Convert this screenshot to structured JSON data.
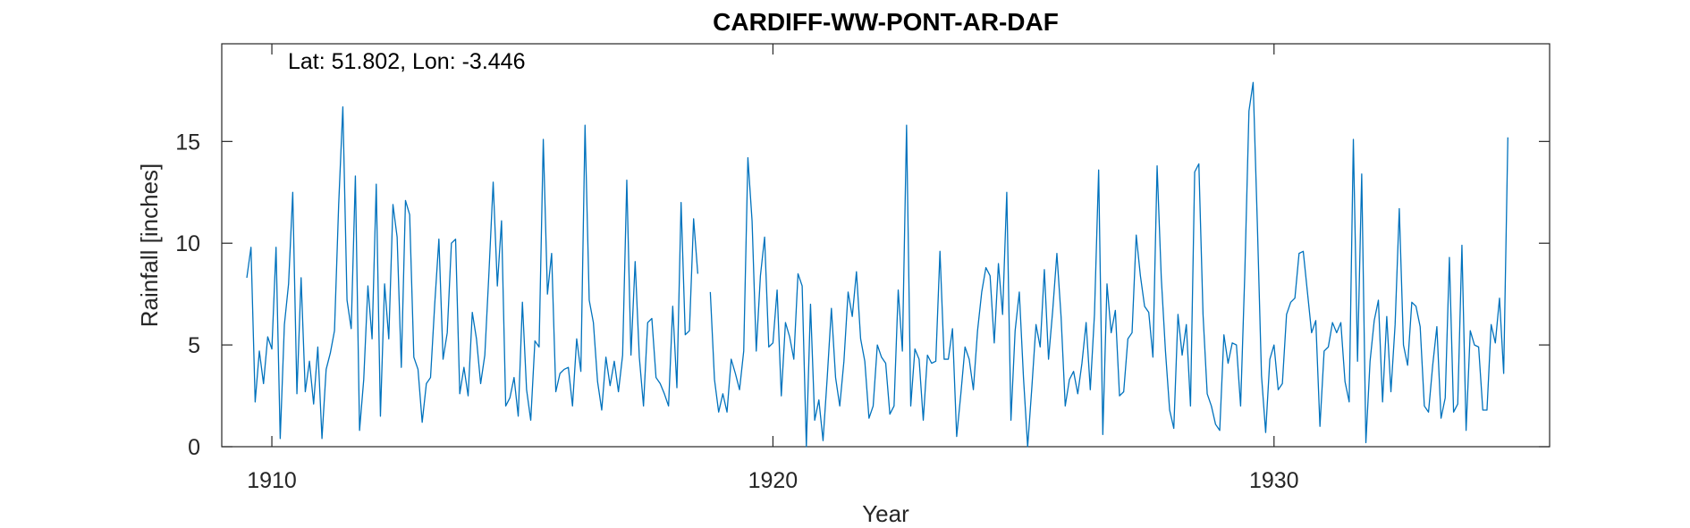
{
  "chart_data": {
    "type": "line",
    "title": "CARDIFF-WW-PONT-AR-DAF",
    "annotation": "Lat: 51.802, Lon: -3.446",
    "xlabel": "Year",
    "ylabel": "Rainfall [inches]",
    "xlim": [
      1909,
      1935.5
    ],
    "ylim": [
      0,
      19.8
    ],
    "xticks": [
      1910,
      1920,
      1930
    ],
    "yticks": [
      0,
      5,
      10,
      15
    ],
    "grid": false,
    "line_color": "#0072BD",
    "series": [
      {
        "segments": [
          {
            "start": 1909.5,
            "step": 0.083333,
            "values": [
              8.3,
              9.8,
              2.2,
              4.7,
              3.1,
              5.4,
              4.8,
              9.8,
              0.4,
              6.0,
              8.0,
              12.5,
              2.6,
              8.3,
              2.7,
              4.2,
              2.1,
              4.9,
              0.4,
              3.8,
              4.6,
              5.7,
              11.9,
              16.7,
              7.2,
              5.8,
              13.3,
              0.8,
              3.3,
              7.9,
              5.3,
              12.9,
              1.5,
              8.0,
              5.3,
              11.9,
              10.3,
              3.9,
              12.1,
              11.4,
              4.4,
              3.8,
              1.2,
              3.1,
              3.4,
              7.0,
              10.2,
              4.3,
              5.6,
              10.0,
              10.2,
              2.6,
              3.9,
              2.5,
              6.6,
              5.3,
              3.1,
              4.5,
              8.6,
              13.0,
              7.9,
              11.1,
              2.0,
              2.4,
              3.4,
              1.5,
              7.1,
              2.8,
              1.3,
              5.2,
              4.9,
              15.1,
              7.5,
              9.5,
              2.7,
              3.6,
              3.8,
              3.9,
              2.0,
              5.3,
              3.7,
              15.8,
              7.2,
              6.1,
              3.2,
              1.8,
              4.4,
              3.0,
              4.2,
              2.7,
              4.5,
              13.1,
              4.5,
              9.1,
              4.4,
              2.0,
              6.1,
              6.3,
              3.4,
              3.1,
              2.6,
              2.0,
              6.9,
              2.9,
              12.0,
              5.5,
              5.7,
              11.2,
              8.5
            ]
          },
          {
            "start": 1918.75,
            "step": 0.083333,
            "values": [
              7.6,
              3.3,
              1.7,
              2.6,
              1.7,
              4.3,
              3.6,
              2.8,
              4.7,
              14.2,
              11.1,
              4.7,
              8.4,
              10.3,
              4.9,
              5.1,
              7.7,
              2.5,
              6.1,
              5.4,
              4.3,
              8.5,
              7.9,
              0.0,
              7.0,
              1.3,
              2.3,
              0.3,
              3.4,
              6.8,
              3.4,
              2.0,
              4.2,
              7.6,
              6.4,
              8.6,
              5.3,
              4.2,
              1.4,
              2.0,
              5.0,
              4.4,
              4.1,
              1.6,
              2.0,
              7.7,
              4.7,
              15.8,
              2.0,
              4.8,
              4.3,
              1.3,
              4.5,
              4.1,
              4.2,
              9.6,
              4.3,
              4.3,
              5.8,
              0.5,
              2.6,
              4.9,
              4.3,
              2.8,
              5.7,
              7.6,
              8.8,
              8.4,
              5.1,
              9.0,
              6.5,
              12.5,
              1.3,
              5.7,
              7.6,
              3.4,
              0.0,
              2.9,
              6.0,
              4.9,
              8.7,
              4.3,
              6.7,
              9.5,
              6.4,
              2.0,
              3.3,
              3.7,
              2.6,
              4.1,
              6.1,
              2.8,
              6.5,
              13.6,
              0.6,
              8.0,
              5.6,
              6.7,
              2.5,
              2.7,
              5.3,
              5.6,
              10.4,
              8.4,
              6.9,
              6.6,
              4.4,
              13.8,
              8.3,
              4.7,
              1.8,
              0.9,
              6.5,
              4.5,
              6.0,
              2.0,
              13.5,
              13.9,
              6.5,
              2.6,
              2.0,
              1.1,
              0.8,
              5.5,
              4.1,
              5.1,
              5.0,
              2.0,
              8.5,
              16.5,
              17.9,
              11.0,
              3.5,
              0.7,
              4.3,
              5.0,
              2.8,
              3.1,
              6.5,
              7.1,
              7.3,
              9.5,
              9.6,
              7.6,
              5.6,
              6.2,
              1.0,
              4.7,
              4.9,
              6.1,
              5.6,
              6.1,
              3.2,
              2.2,
              15.1,
              4.2,
              13.4,
              0.2,
              4.2,
              6.2,
              7.2,
              2.2,
              6.4,
              2.7,
              6.0,
              11.7,
              5.0,
              4.0,
              7.1,
              6.9,
              5.9,
              2.0,
              1.7,
              4.0,
              5.9,
              1.4,
              2.4,
              9.3,
              1.7,
              2.1,
              9.9,
              0.8,
              5.7,
              5.0,
              4.9,
              1.8,
              1.8,
              6.0,
              5.1,
              7.3,
              3.6,
              15.2
            ]
          }
        ]
      }
    ]
  }
}
